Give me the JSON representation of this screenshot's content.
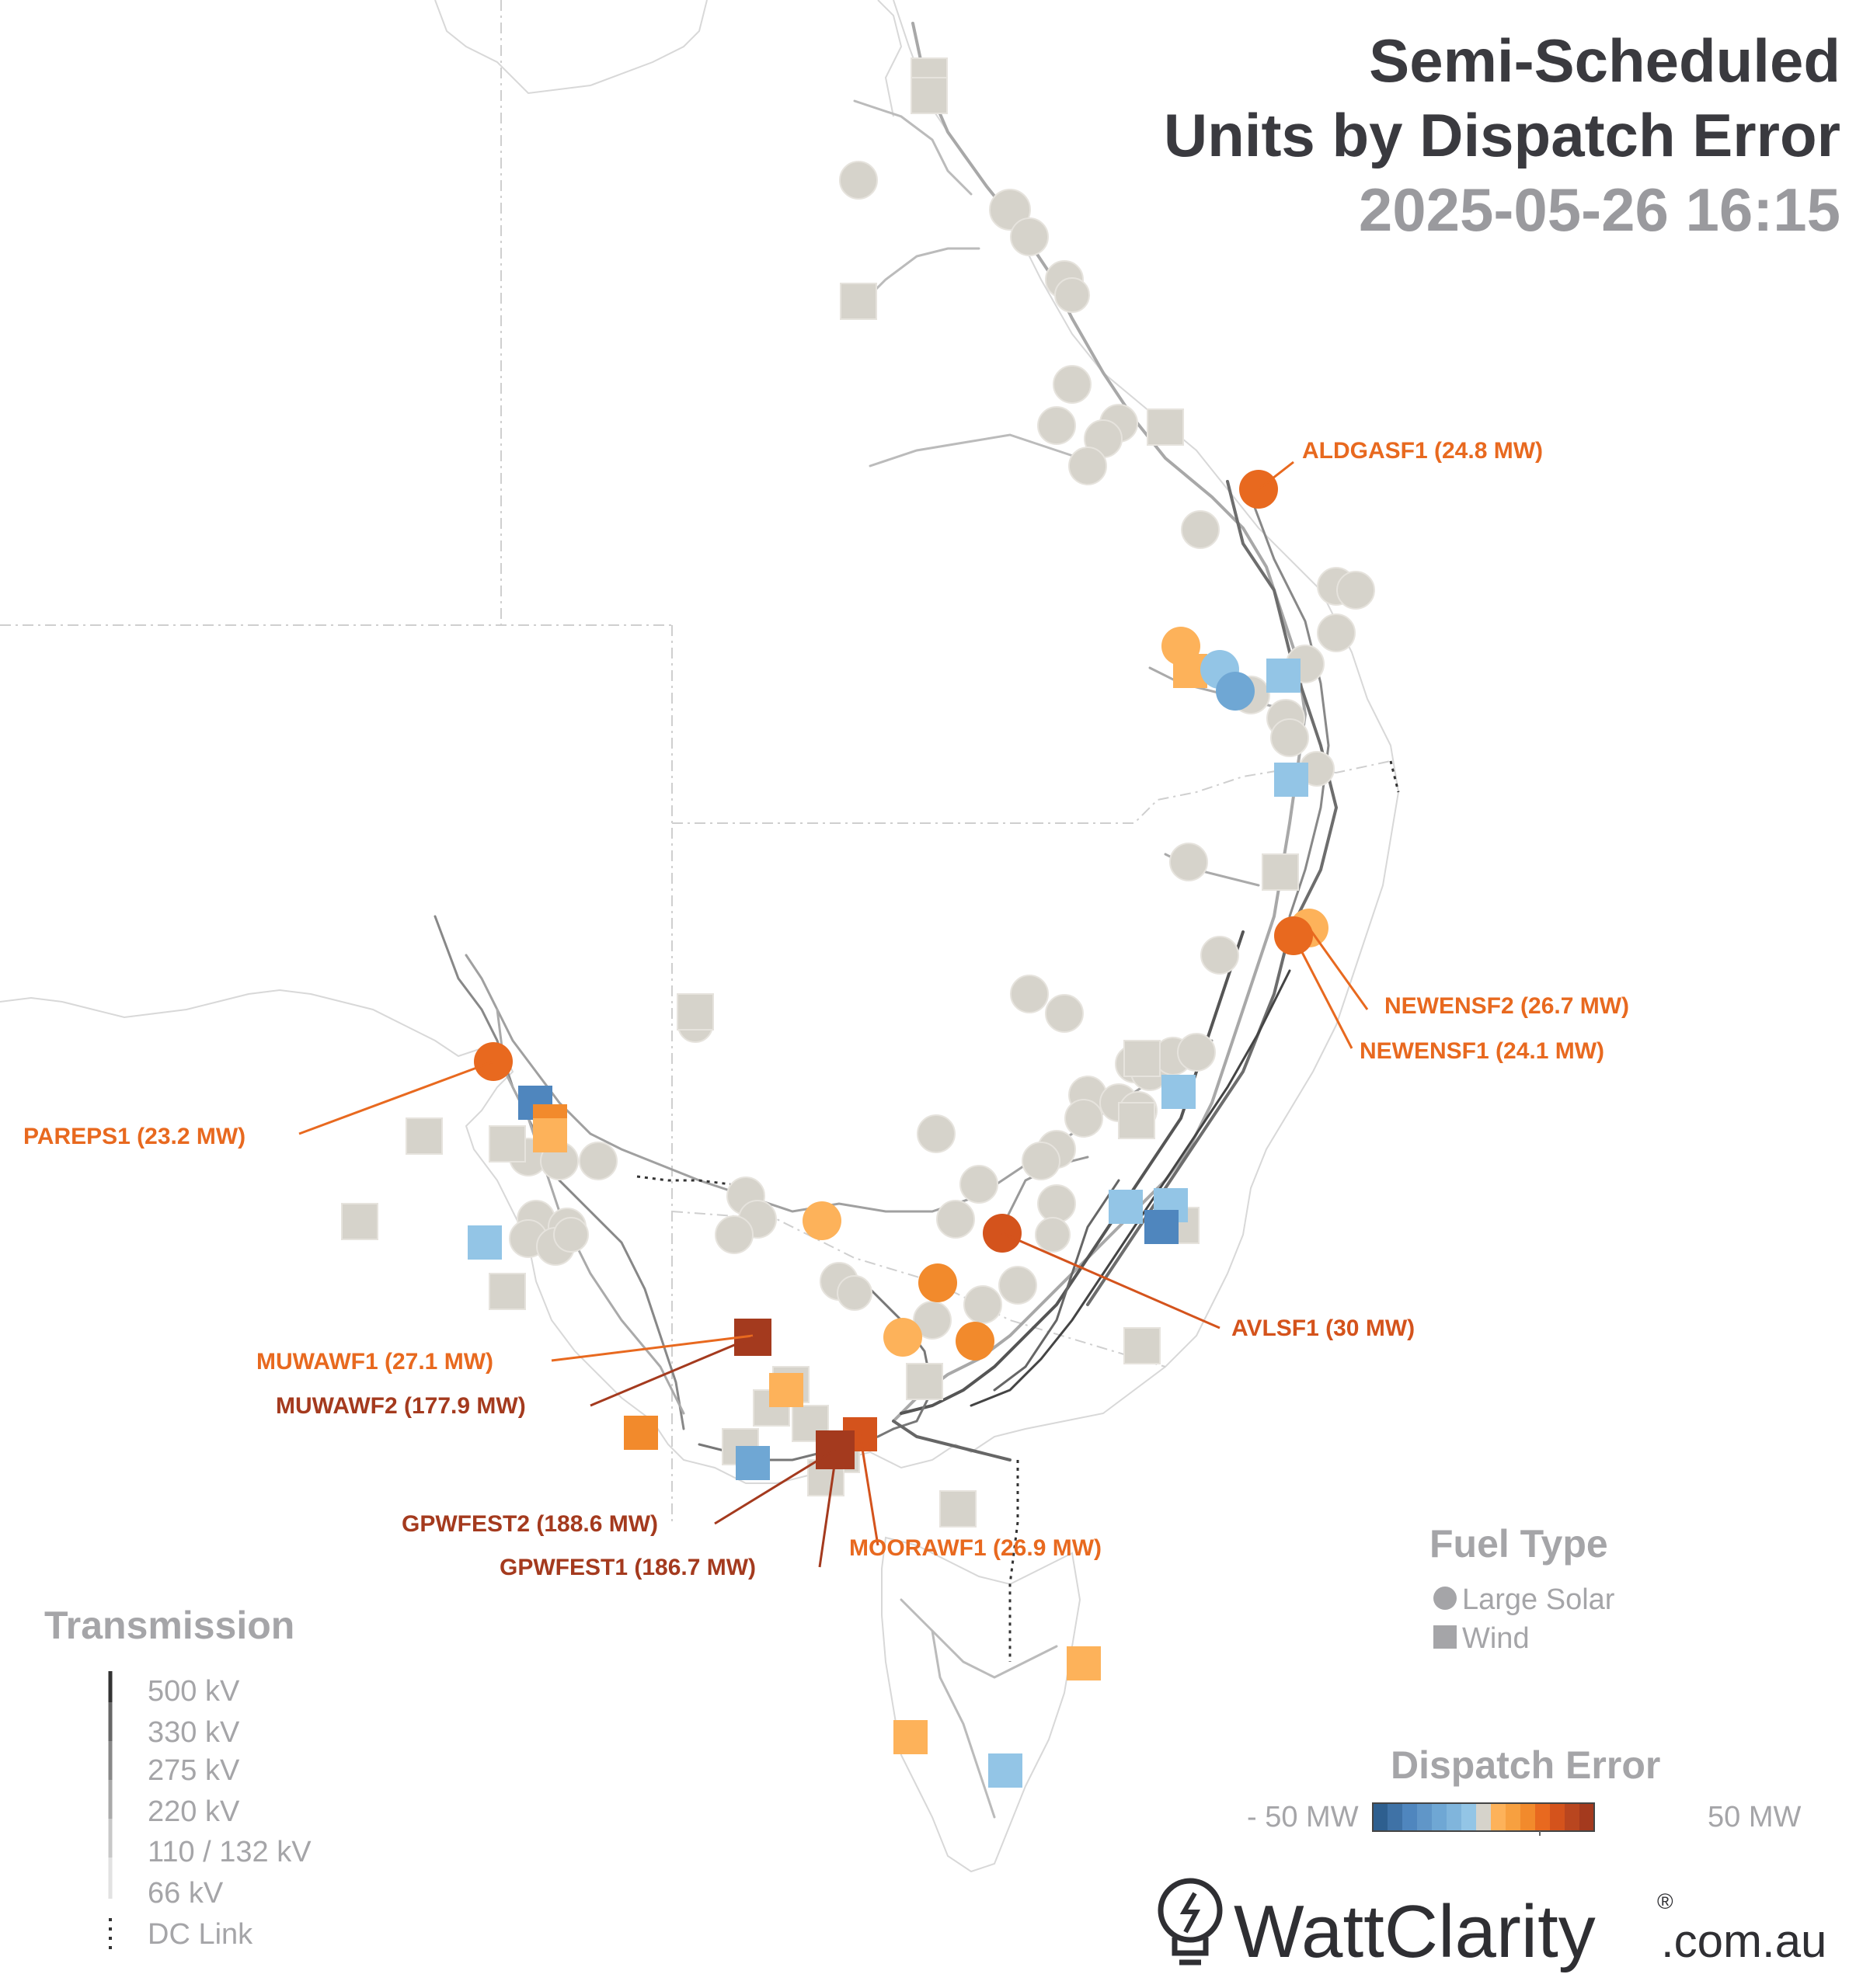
{
  "title": {
    "line1": "Semi-Scheduled",
    "line2": "Units by Dispatch Error",
    "timestamp": "2025-05-26 16:15"
  },
  "colors": {
    "neutral": "#d6d3cb",
    "light_orange": "#fdb25a",
    "orange": "#f28a2c",
    "deep_orange": "#e8691f",
    "red_orange": "#d4531c",
    "dark_red": "#a43a1e",
    "light_blue": "#93c5e6",
    "mid_blue": "#6fa7d4",
    "dark_blue": "#4f86be",
    "label_orange": "#e8691f",
    "label_red": "#a43a1e",
    "label_deep": "#d4531c"
  },
  "labels": [
    {
      "id": "aldgasf1",
      "text": "ALDGASF1 (24.8 MW)",
      "color": "label_orange"
    },
    {
      "id": "newensf2",
      "text": "NEWENSF2 (26.7 MW)",
      "color": "label_orange"
    },
    {
      "id": "newensf1",
      "text": "NEWENSF1 (24.1 MW)",
      "color": "label_orange"
    },
    {
      "id": "pareps1",
      "text": "PAREPS1 (23.2 MW)",
      "color": "label_orange"
    },
    {
      "id": "avlsf1",
      "text": "AVLSF1 (30 MW)",
      "color": "label_deep"
    },
    {
      "id": "muwawf1",
      "text": "MUWAWF1 (27.1 MW)",
      "color": "label_orange"
    },
    {
      "id": "muwawf2",
      "text": "MUWAWF2 (177.9 MW)",
      "color": "label_red"
    },
    {
      "id": "gpwfest2",
      "text": "GPWFEST2 (188.6 MW)",
      "color": "label_red"
    },
    {
      "id": "gpwfest1",
      "text": "GPWFEST1 (186.7 MW)",
      "color": "label_red"
    },
    {
      "id": "moorawf1",
      "text": "MOORAWF1 (26.9 MW)",
      "color": "label_orange"
    }
  ],
  "legend": {
    "fuel_title": "Fuel Type",
    "fuel_items": [
      {
        "label": "Large Solar",
        "icon": "circle-icon"
      },
      {
        "label": "Wind",
        "icon": "square-icon"
      }
    ],
    "error_title": "Dispatch Error",
    "error_min": "- 50 MW",
    "error_max": "50 MW",
    "error_scale": [
      "#2e5f8f",
      "#3f72a6",
      "#4f86be",
      "#6096c8",
      "#6fa7d4",
      "#80b5dc",
      "#93c5e6",
      "#d6d3cb",
      "#fdb25a",
      "#f7a040",
      "#f28a2c",
      "#e8691f",
      "#d4531c",
      "#b9461f",
      "#a43a1e"
    ],
    "transmission_title": "Transmission",
    "transmission_items": [
      "500 kV",
      "330 kV",
      "275 kV",
      "220 kV",
      "110 / 132 kV",
      "66 kV",
      "DC Link"
    ]
  },
  "brand": {
    "name": "WattClarity",
    "registered": "®",
    "suffix": ".com.au",
    "icon": "lightbulb-icon"
  }
}
